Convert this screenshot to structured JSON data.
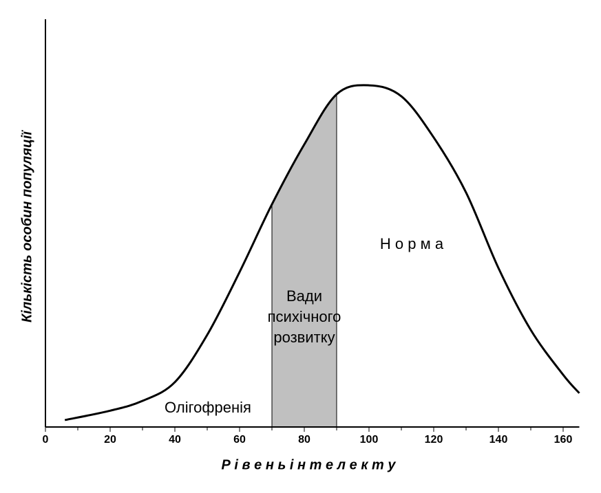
{
  "chart_data": {
    "type": "line",
    "x_label": "Р і в е н ь     і н т е л е к т у",
    "y_label": "Кількість особин популяції",
    "x": [
      6,
      20,
      30,
      40,
      50,
      60,
      70,
      80,
      90,
      100,
      110,
      120,
      130,
      140,
      150,
      160,
      165
    ],
    "values": [
      1.7,
      4.0,
      6.4,
      11,
      22.6,
      38,
      54.6,
      69.3,
      81.6,
      83.8,
      81.1,
      71,
      57.5,
      39,
      23.8,
      12.8,
      8.3
    ],
    "color": "#000000",
    "shaded_range": [
      70,
      90
    ],
    "shade_color": "#c0c0c0",
    "xlim": [
      0,
      165
    ],
    "ylim": [
      0,
      100
    ],
    "xticks": [
      0,
      20,
      40,
      60,
      80,
      100,
      120,
      140,
      160
    ],
    "minor_xticks": [
      10,
      30,
      50,
      70,
      90,
      110,
      130,
      150
    ],
    "annotations": [
      "Олігофренія",
      "Вади",
      "психічного",
      "розвитку",
      "Н о р м а"
    ]
  }
}
